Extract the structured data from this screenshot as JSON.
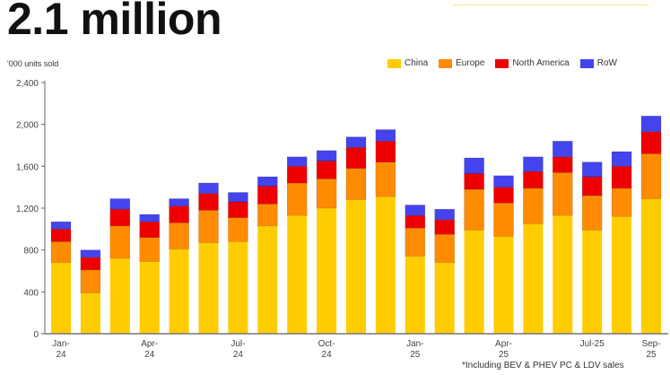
{
  "chart_data": {
    "type": "bar",
    "stacked": true,
    "title": "2.1 million",
    "ylabel": "'000 units sold",
    "xlabel": "",
    "ylim": [
      0,
      2400
    ],
    "yticks": [
      "0",
      "400",
      "800",
      "1,200",
      "1,600",
      "2,000",
      "2,400"
    ],
    "ytick_values": [
      0,
      400,
      800,
      1200,
      1600,
      2000,
      2400
    ],
    "legend_position": "top-right",
    "grid": false,
    "categories": [
      "Jan-24",
      "Feb-24",
      "Mar-24",
      "Apr-24",
      "May-24",
      "Jun-24",
      "Jul-24",
      "Aug-24",
      "Sep-24",
      "Oct-24",
      "Nov-24",
      "Dec-24",
      "Jan-25",
      "Feb-25",
      "Mar-25",
      "Apr-25",
      "May-25",
      "Jun-25",
      "Jul-25",
      "Aug-25",
      "Sep-25"
    ],
    "xtick_labels": [
      {
        "index": 0,
        "lines": [
          "Jan-",
          "24"
        ]
      },
      {
        "index": 3,
        "lines": [
          "Apr-",
          "24"
        ]
      },
      {
        "index": 6,
        "lines": [
          "Jul-",
          "24"
        ]
      },
      {
        "index": 9,
        "lines": [
          "Oct-",
          "24"
        ]
      },
      {
        "index": 12,
        "lines": [
          "Jan-",
          "25"
        ]
      },
      {
        "index": 15,
        "lines": [
          "Apr-",
          "25"
        ]
      },
      {
        "index": 18,
        "lines": [
          "Jul-25"
        ]
      },
      {
        "index": 20,
        "lines": [
          "Sep-",
          "25"
        ]
      }
    ],
    "series": [
      {
        "name": "China",
        "color": "#ffcc00",
        "values": [
          680,
          390,
          720,
          690,
          810,
          870,
          880,
          1030,
          1130,
          1200,
          1280,
          1310,
          740,
          680,
          990,
          930,
          1050,
          1130,
          990,
          1120,
          1290
        ]
      },
      {
        "name": "Europe",
        "color": "#ff8c00",
        "values": [
          200,
          220,
          310,
          230,
          250,
          310,
          230,
          210,
          310,
          280,
          300,
          330,
          270,
          270,
          390,
          320,
          340,
          410,
          330,
          270,
          430
        ]
      },
      {
        "name": "North America",
        "color": "#ee0000",
        "values": [
          120,
          120,
          160,
          150,
          160,
          160,
          150,
          170,
          160,
          170,
          200,
          200,
          120,
          140,
          150,
          150,
          160,
          150,
          180,
          210,
          210
        ]
      },
      {
        "name": "RoW",
        "color": "#4444ee",
        "values": [
          70,
          70,
          100,
          70,
          70,
          100,
          90,
          90,
          90,
          100,
          100,
          110,
          100,
          100,
          150,
          110,
          140,
          150,
          140,
          140,
          150
        ]
      }
    ],
    "footnote": "*Including BEV & PHEV PC & LDV sales"
  }
}
